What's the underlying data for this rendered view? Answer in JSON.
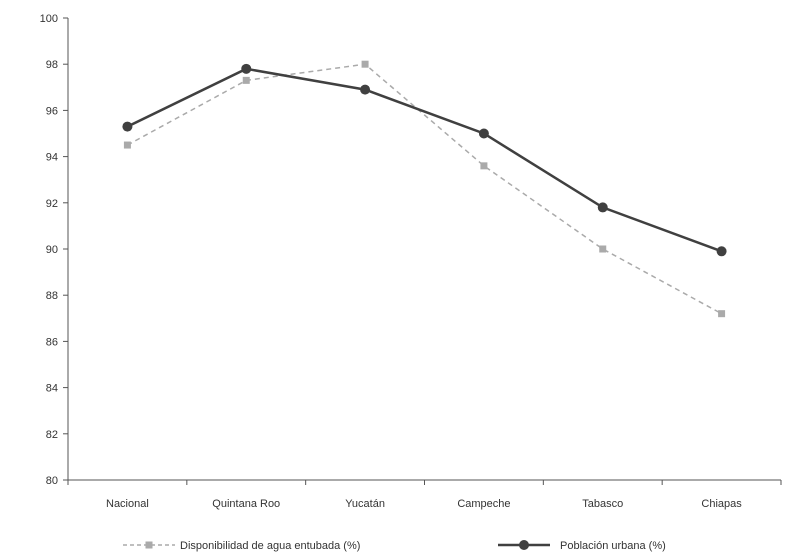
{
  "chart_data": {
    "type": "line",
    "categories": [
      "Nacional",
      "Quintana Roo",
      "Yucatán",
      "Campeche",
      "Tabasco",
      "Chiapas"
    ],
    "series": [
      {
        "name": "Disponibilidad de agua entubada (%)",
        "values": [
          94.5,
          97.3,
          98.0,
          93.6,
          90.0,
          87.2
        ],
        "color": "#aaaaaa",
        "style": "dashed",
        "marker": "square"
      },
      {
        "name": "Población urbana (%)",
        "values": [
          95.3,
          97.8,
          96.9,
          95.0,
          91.8,
          89.9
        ],
        "color": "#404040",
        "style": "solid",
        "marker": "circle"
      }
    ],
    "title": "",
    "xlabel": "",
    "ylabel": "",
    "ylim": [
      80,
      100
    ],
    "yticks": [
      "80",
      "82",
      "84",
      "86",
      "88",
      "90",
      "92",
      "94",
      "96",
      "98",
      "100"
    ],
    "grid": false,
    "legend": "bottom"
  }
}
